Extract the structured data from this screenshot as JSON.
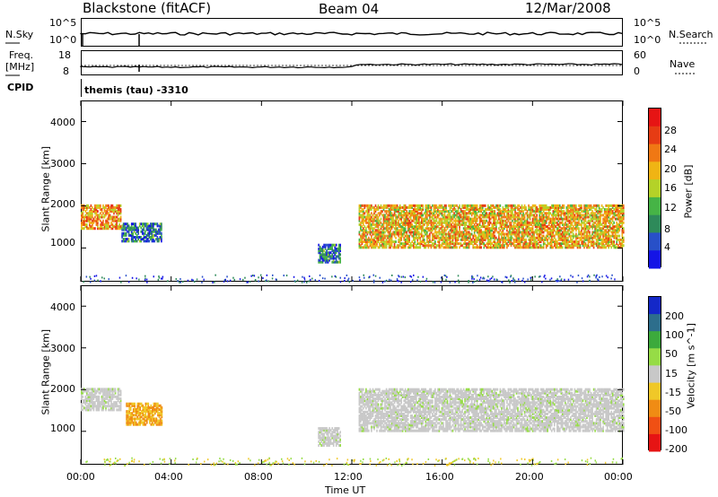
{
  "header": {
    "station": "Blackstone (fitACF)",
    "beam": "Beam 04",
    "date": "12/Mar/2008"
  },
  "noise_panel": {
    "left_label": "N.Sky",
    "right_label": "N.Search",
    "left_ticks": [
      "10^5",
      "10^0"
    ],
    "right_ticks": [
      "10^5",
      "10^0"
    ]
  },
  "freq_panel": {
    "left_label_line1": "Freq.",
    "left_label_line2": "[MHz]",
    "right_label": "Nave",
    "left_ticks": [
      "18",
      "8"
    ],
    "right_ticks": [
      "60",
      "0"
    ]
  },
  "cpid": {
    "label": "CPID",
    "value": "themis (tau) -3310"
  },
  "colors": {
    "power_scale": [
      "#1414e6",
      "#2850c8",
      "#2e8a5a",
      "#46b446",
      "#b4d228",
      "#f0b414",
      "#f07814",
      "#e63c14",
      "#e61414"
    ],
    "velocity_scale": [
      "#e61414",
      "#f05014",
      "#f08c14",
      "#f0c828",
      "#c8c8c8",
      "#96dc46",
      "#3caa3c",
      "#2d6e8c",
      "#1428c8"
    ]
  },
  "chart_data": [
    {
      "type": "heatmap",
      "panel": "power",
      "ylabel": "Slant Range [km]",
      "ylim": [
        200,
        4500
      ],
      "y_ticks": [
        "1000",
        "2000",
        "3000",
        "4000"
      ],
      "xlim": [
        "00:00",
        "24:00"
      ],
      "colorbar_label": "Power [dB]",
      "colorbar_ticks": [
        "4",
        "8",
        "12",
        "16",
        "20",
        "24",
        "28"
      ],
      "colorbar_range": [
        0,
        32
      ],
      "regions": [
        {
          "t0": 0.0,
          "t1": 1.8,
          "r0": 1450,
          "r1": 2000,
          "level": 20
        },
        {
          "t0": 1.8,
          "t1": 3.6,
          "r0": 1150,
          "r1": 1600,
          "level": 6
        },
        {
          "t0": 10.5,
          "t1": 11.5,
          "r0": 650,
          "r1": 1100,
          "level": 6
        },
        {
          "t0": 12.3,
          "t1": 24.0,
          "r0": 1000,
          "r1": 2000,
          "level": 18
        }
      ]
    },
    {
      "type": "heatmap",
      "panel": "velocity",
      "ylabel": "Slant Range [km]",
      "ylim": [
        200,
        4500
      ],
      "y_ticks": [
        "1000",
        "2000",
        "3000",
        "4000"
      ],
      "xlim": [
        "00:00",
        "24:00"
      ],
      "colorbar_label": "Velocity [m s^-1]",
      "colorbar_ticks": [
        "200",
        "100",
        "50",
        "15",
        "-15",
        "-50",
        "-100",
        "-200"
      ],
      "regions": [
        {
          "t0": 0.0,
          "t1": 1.8,
          "r0": 1500,
          "r1": 2000,
          "level": 0
        },
        {
          "t0": 2.0,
          "t1": 3.6,
          "r0": 1150,
          "r1": 1650,
          "level": -70
        },
        {
          "t0": 10.5,
          "t1": 11.5,
          "r0": 650,
          "r1": 1100,
          "level": 0
        },
        {
          "t0": 12.3,
          "t1": 24.0,
          "r0": 1000,
          "r1": 2000,
          "level": 0
        }
      ]
    }
  ],
  "x_axis": {
    "ticks": [
      "00:00",
      "04:00",
      "08:00",
      "12:00",
      "16:00",
      "20:00",
      "00:00"
    ],
    "label": "Time UT"
  }
}
